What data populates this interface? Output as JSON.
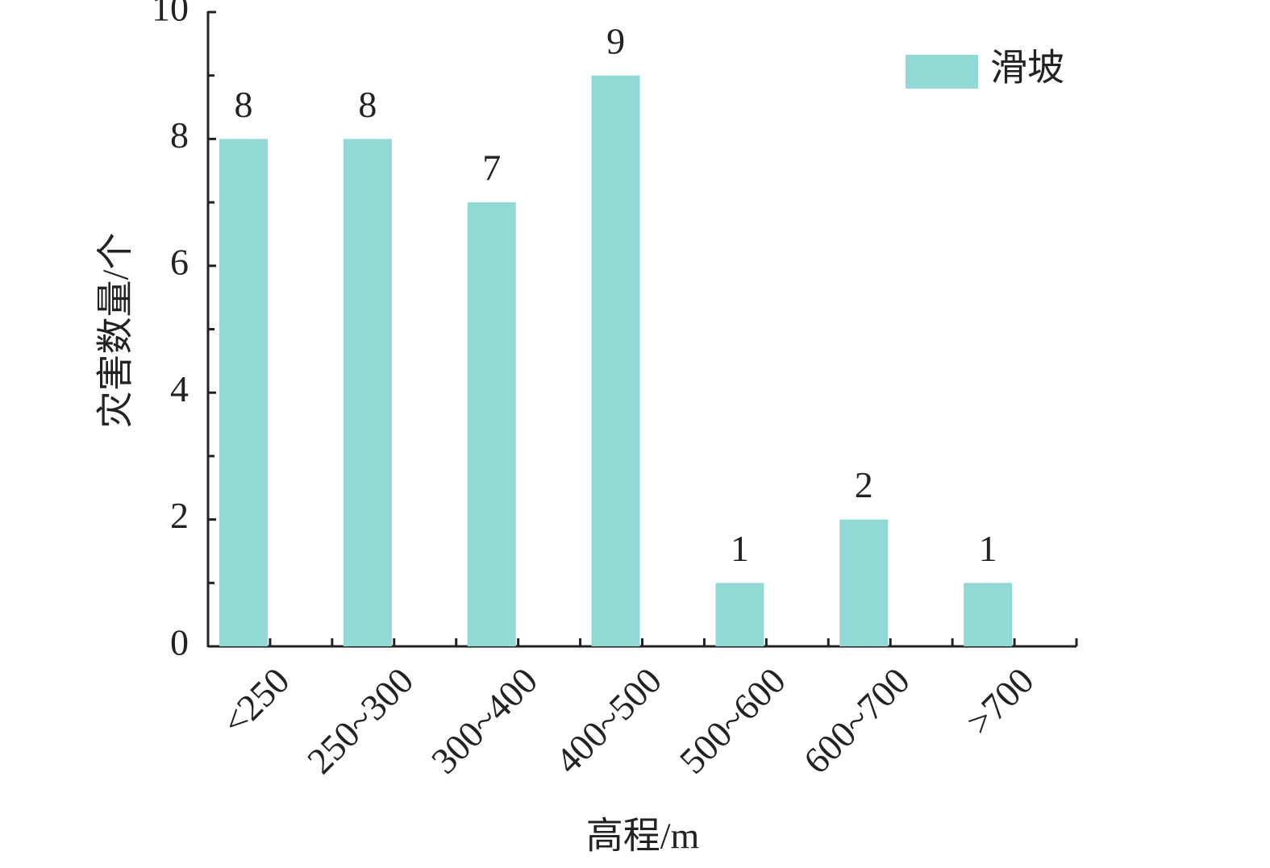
{
  "chart_data": {
    "type": "bar",
    "categories": [
      "<250",
      "250~300",
      "300~400",
      "400~500",
      "500~600",
      "600~700",
      ">700"
    ],
    "series": [
      {
        "name": "滑坡",
        "color": "#92d9d6",
        "values": [
          8,
          8,
          7,
          9,
          1,
          2,
          1
        ]
      }
    ],
    "xlabel": "高程/m",
    "ylabel": "灾害数量/个",
    "ylim": [
      0,
      10
    ],
    "yticks": [
      0,
      2,
      4,
      6,
      8,
      10
    ],
    "legend": "upper right",
    "data_labels": true
  }
}
